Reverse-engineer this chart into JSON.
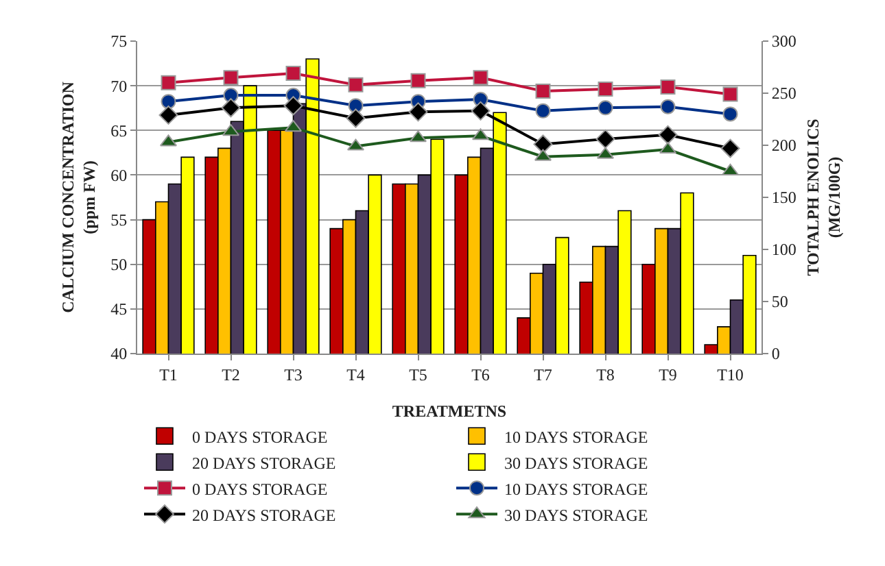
{
  "chart_data": {
    "type": "bar",
    "xlabel": "TREATMETNS",
    "ylabel": "CALCIUM CONCENTRATION (ppm FW)",
    "y2label": "TOTALPH ENOLICS (MG/100G)",
    "categories": [
      "T1",
      "T2",
      "T3",
      "T4",
      "T5",
      "T6",
      "T7",
      "T8",
      "T9",
      "T10"
    ],
    "series": [
      {
        "name": "0 DAYS STORAGE",
        "color": "#c00000",
        "values": [
          55,
          62,
          65,
          54,
          59,
          60,
          44,
          48,
          50,
          41
        ]
      },
      {
        "name": "10 DAYS STORAGE",
        "color": "#ffc000",
        "values": [
          57,
          63,
          65,
          55,
          59,
          62,
          49,
          52,
          54,
          43
        ]
      },
      {
        "name": "20 DAYS STORAGE",
        "color": "#4a3b5c",
        "values": [
          59,
          66,
          68,
          56,
          60,
          63,
          50,
          52,
          54,
          46
        ]
      },
      {
        "name": "30 DAYS STORAGE",
        "color": "#ffff00",
        "values": [
          62,
          70,
          73,
          60,
          64,
          67,
          53,
          56,
          58,
          51
        ]
      },
      {
        "name": "0 DAYS STORAGE",
        "type": "line",
        "axis": "y2",
        "marker": "square",
        "color": "#c0143c",
        "values": [
          260,
          265,
          269,
          258,
          262,
          265,
          252,
          254,
          256,
          249
        ]
      },
      {
        "name": "10 DAYS STORAGE",
        "type": "line",
        "axis": "y2",
        "marker": "circle",
        "color": "#003087",
        "values": [
          242,
          248,
          248,
          238,
          242,
          244,
          233,
          236,
          237,
          230
        ]
      },
      {
        "name": "20 DAYS STORAGE",
        "type": "line",
        "axis": "y2",
        "marker": "diamond",
        "color": "#000000",
        "values": [
          229,
          236,
          238,
          226,
          232,
          233,
          201,
          206,
          210,
          197
        ]
      },
      {
        "name": "30 DAYS STORAGE",
        "type": "line",
        "axis": "y2",
        "marker": "triangle",
        "color": "#1e5a1e",
        "values": [
          203,
          213,
          217,
          199,
          207,
          209,
          189,
          191,
          196,
          175
        ]
      }
    ],
    "ylim": [
      40,
      75
    ],
    "yticks": [
      40,
      45,
      50,
      55,
      60,
      65,
      70,
      75
    ],
    "y2lim": [
      0,
      300
    ],
    "y2ticks": [
      0,
      50,
      100,
      150,
      200,
      250,
      300
    ],
    "grid": "y",
    "legend": "bottom"
  }
}
